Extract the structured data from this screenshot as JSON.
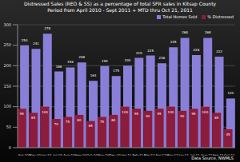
{
  "chart_data": {
    "type": "bar",
    "title": "Distressed Sales (REO & SS) as a percentage of total SFR sales in Kitsap County",
    "subtitle": "Period from April 2010 - Sept 2011 + MTD thru Oct 21, 2011",
    "categories": [
      "Apr-10",
      "May-10",
      "Jun-10",
      "Jul-10",
      "Aug-10",
      "Sep-10",
      "Oct-10",
      "Nov-10",
      "Dec-10",
      "Jan-11",
      "Feb-11",
      "Mar-11",
      "Apr-11",
      "May-11",
      "Jun-11",
      "Jul-11",
      "Aug-11",
      "Sep-11",
      "Oct-11"
    ],
    "series": [
      {
        "name": "Total Homes Sold",
        "color": "#8a7fd8",
        "values": [
          250,
          241,
          278,
          186,
          196,
          208,
          163,
          199,
          175,
          200,
          219,
          225,
          206,
          245,
          268,
          226,
          268,
          222,
          120
        ]
      },
      {
        "name": "% Distressed",
        "color": "#8c1c3c",
        "values": [
          95,
          85,
          100,
          70,
          75,
          80,
          65,
          75,
          80,
          100,
          95,
          90,
          95,
          100,
          90,
          95,
          100,
          85,
          45
        ]
      }
    ],
    "ylim": [
      0,
      300
    ],
    "yticks": [
      0,
      50,
      100,
      150,
      200,
      250,
      300
    ],
    "grid": true,
    "legend": "top-right",
    "data_labels": true,
    "annotations": [
      "Data Source, NWMLS"
    ]
  }
}
